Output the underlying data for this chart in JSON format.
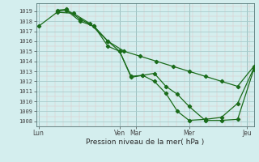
{
  "xlabel": "Pression niveau de la mer( hPa )",
  "background_color": "#d4eeee",
  "grid_major_color": "#a8cccc",
  "grid_minor_color": "#e0c8c8",
  "line_color": "#1a6b1a",
  "ylim": [
    1007.5,
    1019.8
  ],
  "yticks": [
    1008,
    1009,
    1010,
    1011,
    1012,
    1013,
    1014,
    1015,
    1016,
    1017,
    1018,
    1019
  ],
  "day_labels": [
    "Lun",
    "Ven",
    "Mar",
    "Mer",
    "Jeu"
  ],
  "day_positions": [
    0,
    3.5,
    4.2,
    6.5,
    9.0
  ],
  "xlim": [
    -0.1,
    9.3
  ],
  "series1_x": [
    0.0,
    0.8,
    1.5,
    2.2,
    3.0,
    3.7,
    4.4,
    5.1,
    5.8,
    6.5,
    7.2,
    7.9,
    8.6,
    9.3
  ],
  "series1_y": [
    1017.5,
    1018.9,
    1018.8,
    1017.8,
    1016.0,
    1015.0,
    1014.5,
    1014.0,
    1013.5,
    1013.0,
    1012.5,
    1012.0,
    1011.5,
    1013.5
  ],
  "series2_x": [
    0.8,
    1.2,
    1.8,
    2.4,
    3.0,
    3.5,
    4.0,
    4.5,
    5.0,
    5.5,
    6.0,
    6.5,
    7.2,
    7.9,
    8.6,
    9.3
  ],
  "series2_y": [
    1019.0,
    1019.1,
    1018.0,
    1017.5,
    1016.0,
    1015.0,
    1012.5,
    1012.6,
    1012.8,
    1011.5,
    1010.7,
    1009.5,
    1008.1,
    1008.1,
    1008.2,
    1013.2
  ],
  "series3_x": [
    0.8,
    1.2,
    1.8,
    2.4,
    3.0,
    3.5,
    4.0,
    4.5,
    5.0,
    5.5,
    6.0,
    6.5,
    7.2,
    7.9,
    8.6,
    9.3
  ],
  "series3_y": [
    1019.1,
    1019.2,
    1018.2,
    1017.5,
    1015.5,
    1015.0,
    1012.4,
    1012.6,
    1012.0,
    1010.8,
    1009.0,
    1008.1,
    1008.2,
    1008.4,
    1009.8,
    1013.3
  ],
  "line_width": 0.9,
  "marker_size": 2.2
}
